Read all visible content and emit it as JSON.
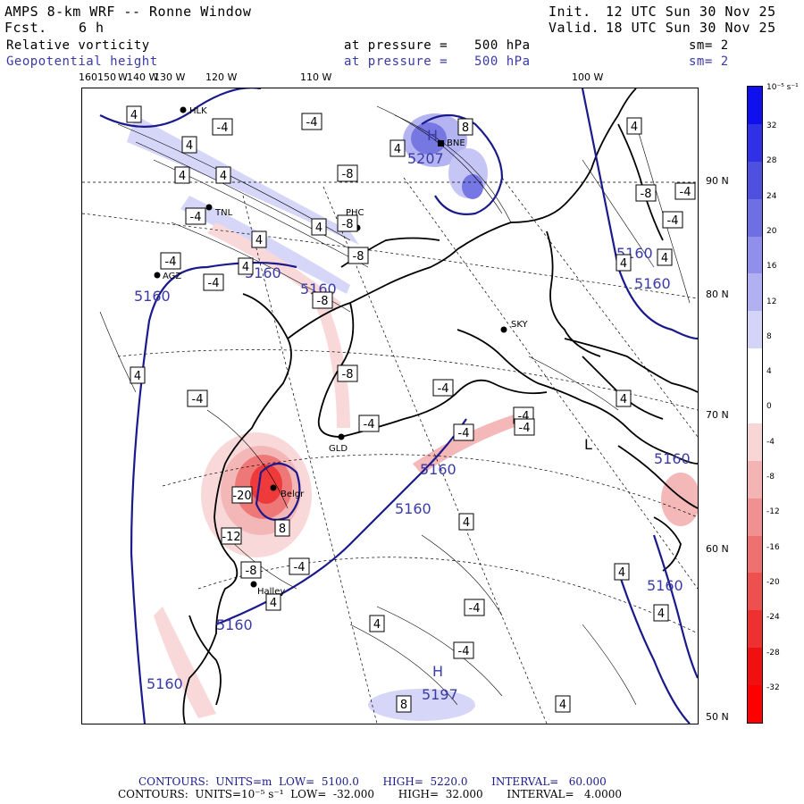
{
  "header": {
    "model": "AMPS 8-km WRF -- Ronne Window",
    "fcst_label": "Fcst.",
    "fcst_value": "6 h",
    "init_label": "Init.",
    "init_time": "12 UTC Sun 30 Nov 25",
    "valid_label": "Valid.",
    "valid_time": "18 UTC Sun 30 Nov 25",
    "field1": "Relative vorticity",
    "field1_pressure_label": "at pressure =",
    "field1_pressure": "500 hPa",
    "field1_sm": "sm= 2",
    "field2": "Geopotential height",
    "field2_pressure_label": "at pressure =",
    "field2_pressure": "500 hPa",
    "field2_sm": "sm= 2"
  },
  "lon_labels": [
    "160150",
    "W",
    "140 W",
    "130 W",
    "120 W",
    "110 W",
    "100 W"
  ],
  "lat_labels": [
    "90 N",
    "80 N",
    "70 N",
    "60 N",
    "50 N"
  ],
  "stations": [
    {
      "name": "HLK"
    },
    {
      "name": "TNL"
    },
    {
      "name": "AGZ"
    },
    {
      "name": "PHC"
    },
    {
      "name": "BNE"
    },
    {
      "name": "SKY"
    },
    {
      "name": "GLD"
    },
    {
      "name": "Belgr"
    },
    {
      "name": "Halley"
    }
  ],
  "height_contours": {
    "labels": [
      "5160",
      "5160",
      "5160",
      "5160",
      "5160",
      "5160",
      "5160",
      "5160",
      "5160",
      "5160",
      "5160"
    ],
    "centers": [
      {
        "letter": "H",
        "value": "5207"
      },
      {
        "letter": "H",
        "value": "5197"
      },
      {
        "letter": "L",
        "value": ""
      }
    ]
  },
  "vorticity_boxes": [
    "4",
    "-4",
    "4",
    "-4",
    "4",
    "-8",
    "4",
    "8",
    "4",
    "-8",
    "4",
    "-4",
    "4",
    "-8",
    "-4",
    "4",
    "-4",
    "-8",
    "4",
    "-4",
    "-8",
    "-4",
    "-4",
    "4",
    "-4",
    "-20",
    "-12",
    "-8",
    "-4",
    "4",
    "8",
    "-4",
    "4",
    "-4",
    "4",
    "-4",
    "4",
    "-8",
    "4",
    "-4",
    "8",
    "4",
    "4",
    "-4",
    "-4",
    "4",
    "4"
  ],
  "colorbar": {
    "unit": "10⁻⁵ s⁻¹",
    "labels": [
      "32",
      "28",
      "24",
      "20",
      "16",
      "12",
      "8",
      "4",
      "0",
      "-4",
      "-8",
      "-12",
      "-16",
      "-20",
      "-24",
      "-28",
      "-32"
    ],
    "colors": [
      "#1010ee",
      "#3030e6",
      "#4f4fe0",
      "#6f6fe4",
      "#9090ec",
      "#b0b0f2",
      "#d4d4f8",
      "#ffffff",
      "#ffffff",
      "#f8d6d6",
      "#f4b4b4",
      "#f09090",
      "#ee7070",
      "#ee5050",
      "#ee3030",
      "#f01010",
      "#ff0000"
    ]
  },
  "footer": {
    "line1": "CONTOURS:  UNITS=m  LOW=  5100.0       HIGH=  5220.0       INTERVAL=   60.000",
    "line2": "CONTOURS:  UNITS=10⁻⁵ s⁻¹  LOW=  -32.000       HIGH=  32.000       INTERVAL=   4.0000"
  }
}
